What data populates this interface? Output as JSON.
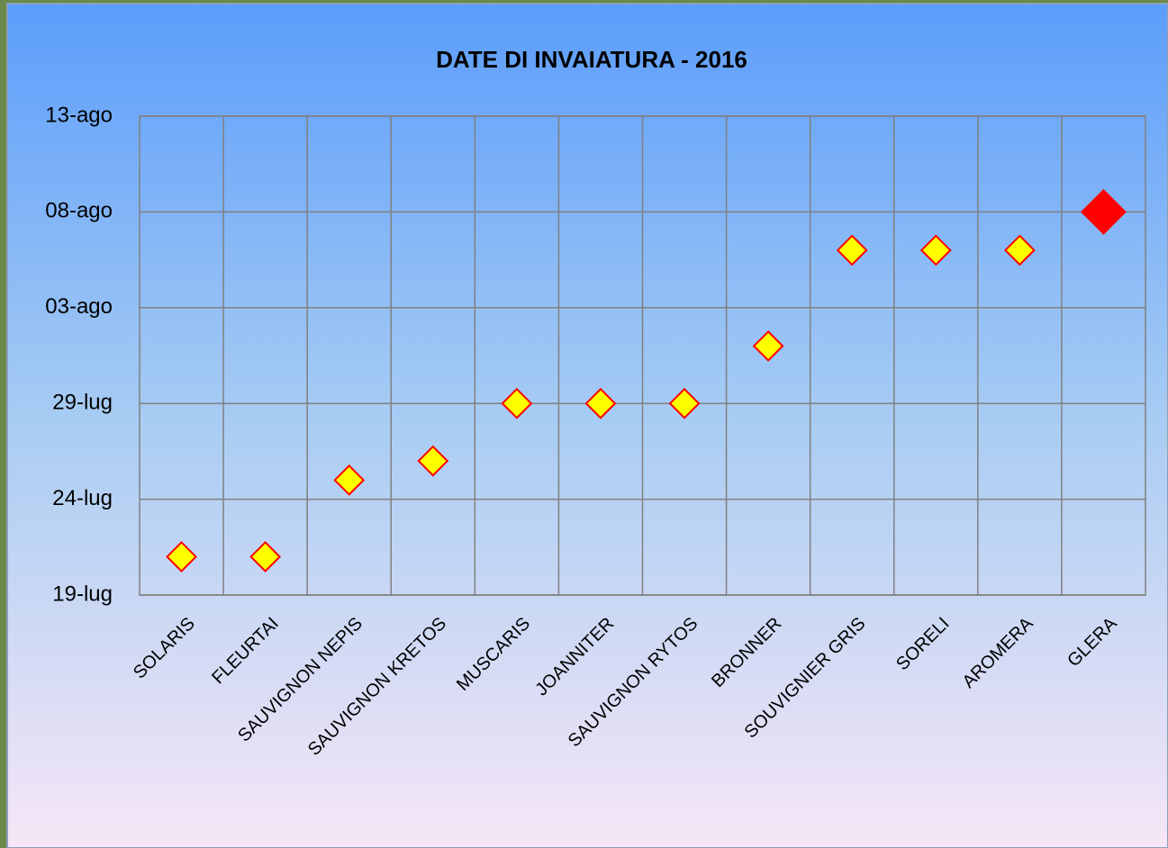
{
  "chart_data": {
    "type": "scatter",
    "title": "DATE DI INVAIATURA   - 2016",
    "categories": [
      "SOLARIS",
      "FLEURTAI",
      "SAUVIGNON  NEPIS",
      "SAUVIGNON  KRETOS",
      "MUSCARIS",
      "JOANNITER",
      "SAUVIGNON RYTOS",
      "BRONNER",
      "SOUVIGNIER  GRIS",
      "SORELI",
      "AROMERA",
      "GLERA"
    ],
    "values": [
      "2016-07-21",
      "2016-07-21",
      "2016-07-25",
      "2016-07-26",
      "2016-07-29",
      "2016-07-29",
      "2016-07-29",
      "2016-08-01",
      "2016-08-06",
      "2016-08-06",
      "2016-08-06",
      "2016-08-08"
    ],
    "point_colors": [
      "#ffff00",
      "#ffff00",
      "#ffff00",
      "#ffff00",
      "#ffff00",
      "#ffff00",
      "#ffff00",
      "#ffff00",
      "#ffff00",
      "#ffff00",
      "#ffff00",
      "#ff0000"
    ],
    "marker_edge_color": "#ff0000",
    "ylim": [
      "2016-07-19",
      "2016-08-13"
    ],
    "yticks": [
      {
        "value": "2016-07-19",
        "label": "19-lug"
      },
      {
        "value": "2016-07-24",
        "label": "24-lug"
      },
      {
        "value": "2016-07-29",
        "label": "29-lug"
      },
      {
        "value": "2016-08-03",
        "label": "03-ago"
      },
      {
        "value": "2016-08-08",
        "label": "08-ago"
      },
      {
        "value": "2016-08-13",
        "label": "13-ago"
      }
    ],
    "grid": true
  }
}
